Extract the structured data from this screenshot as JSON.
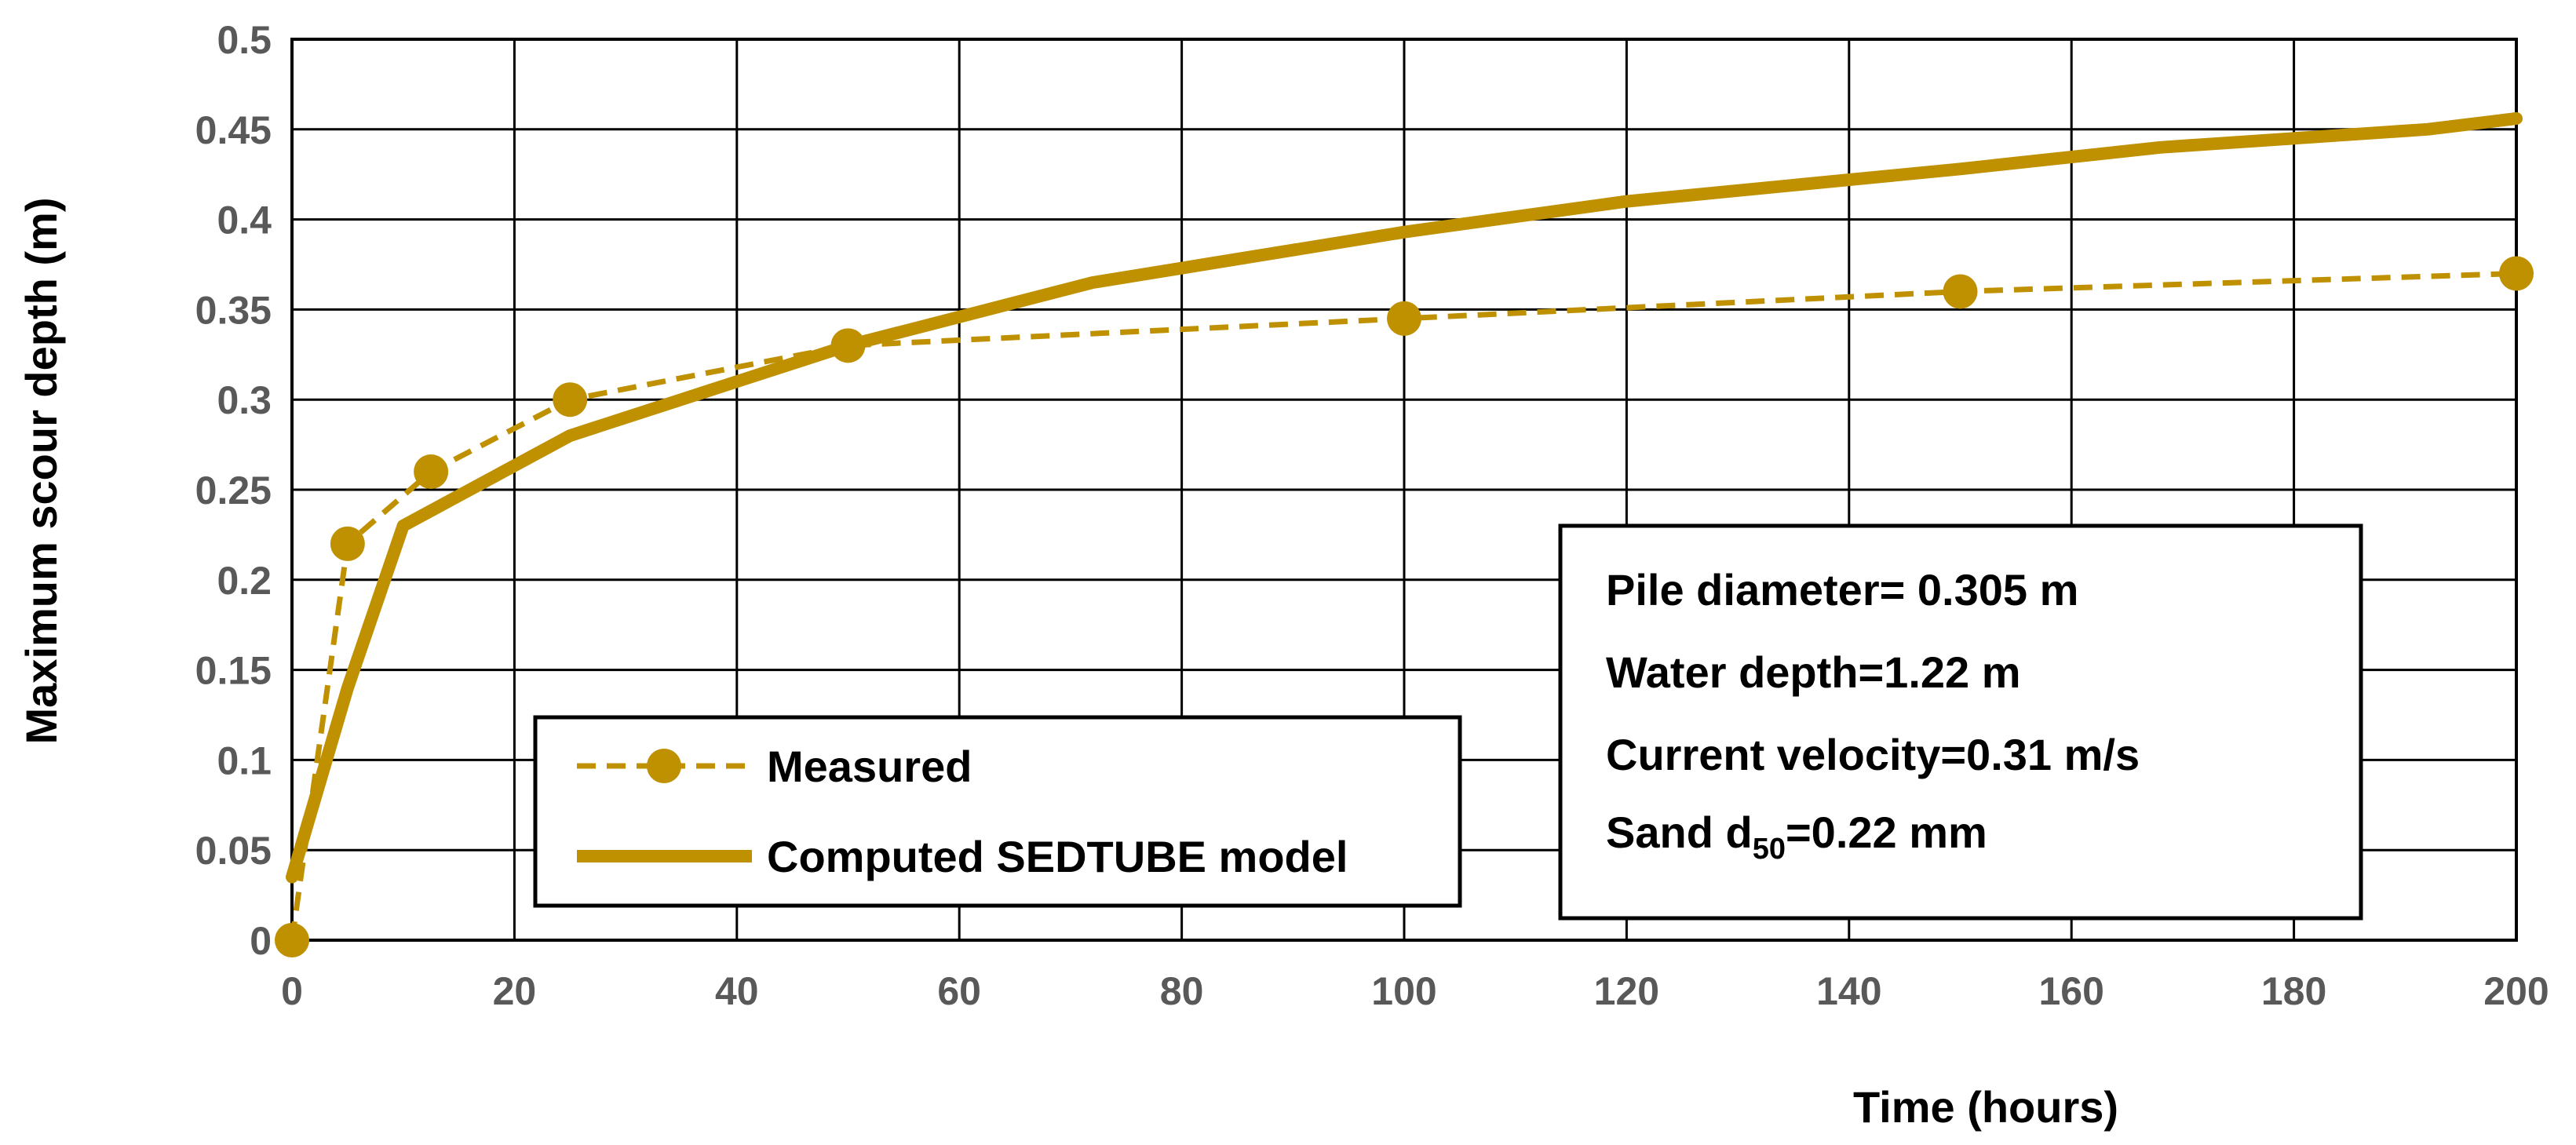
{
  "chart_data": {
    "type": "line",
    "title": "",
    "xlabel": "Time (hours)",
    "ylabel": "Maximum scour depth (m)",
    "xlim": [
      0,
      200
    ],
    "ylim": [
      0,
      0.5
    ],
    "x_ticks": [
      "0",
      "20",
      "40",
      "60",
      "80",
      "100",
      "120",
      "140",
      "160",
      "180",
      "200"
    ],
    "y_ticks": [
      "0",
      "0.05",
      "0.1",
      "0.15",
      "0.2",
      "0.25",
      "0.3",
      "0.35",
      "0.4",
      "0.45",
      "0.5"
    ],
    "grid": true,
    "series_color": "#bf9000",
    "legend_position": "bottom-center",
    "series": [
      {
        "name": "Measured",
        "style": "dashed-with-markers",
        "points": [
          {
            "x": 0,
            "y": 0
          },
          {
            "x": 5,
            "y": 0.22
          },
          {
            "x": 12.5,
            "y": 0.26
          },
          {
            "x": 25,
            "y": 0.3
          },
          {
            "x": 50,
            "y": 0.33
          },
          {
            "x": 100,
            "y": 0.345
          },
          {
            "x": 150,
            "y": 0.36
          },
          {
            "x": 200,
            "y": 0.37
          }
        ]
      },
      {
        "name": "Computed SEDTUBE model",
        "style": "solid",
        "points": [
          {
            "x": 0,
            "y": 0.035
          },
          {
            "x": 5,
            "y": 0.14
          },
          {
            "x": 10,
            "y": 0.23
          },
          {
            "x": 25,
            "y": 0.28
          },
          {
            "x": 40,
            "y": 0.31
          },
          {
            "x": 50,
            "y": 0.33
          },
          {
            "x": 72,
            "y": 0.365
          },
          {
            "x": 100,
            "y": 0.393
          },
          {
            "x": 120,
            "y": 0.41
          },
          {
            "x": 150,
            "y": 0.428
          },
          {
            "x": 168,
            "y": 0.44
          },
          {
            "x": 192,
            "y": 0.45
          },
          {
            "x": 200,
            "y": 0.456
          }
        ]
      }
    ],
    "annotation": {
      "lines": [
        {
          "text": "Pile diameter= 0.305 m"
        },
        {
          "text": "Water depth=1.22 m"
        },
        {
          "text": "Current velocity=0.31 m/s"
        },
        {
          "prefix": "Sand d",
          "subscript": "50",
          "suffix": "=0.22 mm"
        }
      ]
    }
  }
}
